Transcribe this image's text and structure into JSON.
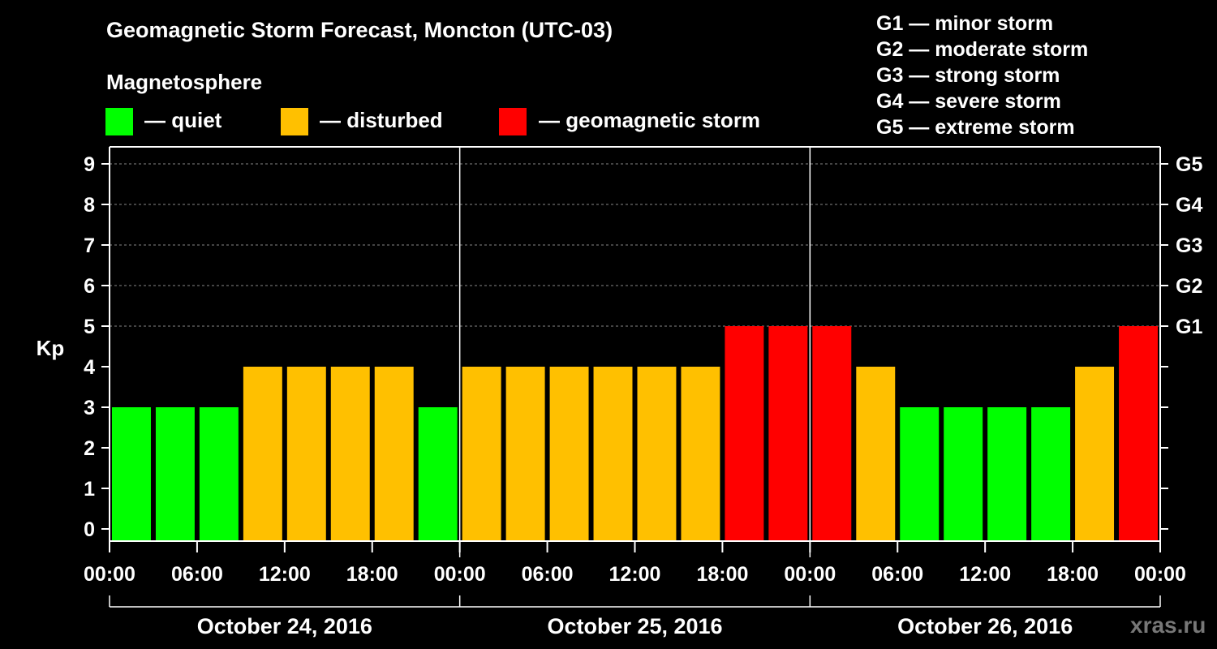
{
  "title": "Geomagnetic Storm Forecast, Moncton (UTC-03)",
  "magnetosphere_label": "Magnetosphere",
  "legend": [
    {
      "label": "— quiet",
      "color": "#00ff00"
    },
    {
      "label": "— disturbed",
      "color": "#ffc000"
    },
    {
      "label": "— geomagnetic storm",
      "color": "#ff0000"
    }
  ],
  "g_scale": [
    "G1 — minor storm",
    "G2 — moderate storm",
    "G3 — strong storm",
    "G4 — severe storm",
    "G5 — extreme storm"
  ],
  "watermark": "xras.ru",
  "chart_data": {
    "type": "bar",
    "ylabel": "Kp",
    "ylim": [
      0,
      9
    ],
    "yticks": [
      0,
      1,
      2,
      3,
      4,
      5,
      6,
      7,
      8,
      9
    ],
    "right_axis_labels": [
      {
        "kp": 5,
        "label": "G1"
      },
      {
        "kp": 6,
        "label": "G2"
      },
      {
        "kp": 7,
        "label": "G3"
      },
      {
        "kp": 8,
        "label": "G4"
      },
      {
        "kp": 9,
        "label": "G5"
      }
    ],
    "x_tick_labels": [
      "00:00",
      "06:00",
      "12:00",
      "18:00",
      "00:00",
      "06:00",
      "12:00",
      "18:00",
      "00:00",
      "06:00",
      "12:00",
      "18:00",
      "00:00"
    ],
    "days": [
      "October 24, 2016",
      "October 25, 2016",
      "October 26, 2016"
    ],
    "interval_hours": 3,
    "values": [
      3,
      3,
      3,
      4,
      4,
      4,
      4,
      3,
      4,
      4,
      4,
      4,
      4,
      4,
      5,
      5,
      5,
      4,
      3,
      3,
      3,
      3,
      4,
      5
    ],
    "color_rule": {
      "quiet_max": 3,
      "disturbed": 4,
      "storm_min": 5
    },
    "colors": {
      "quiet": "#00ff00",
      "disturbed": "#ffc000",
      "storm": "#ff0000"
    },
    "grid": true
  }
}
